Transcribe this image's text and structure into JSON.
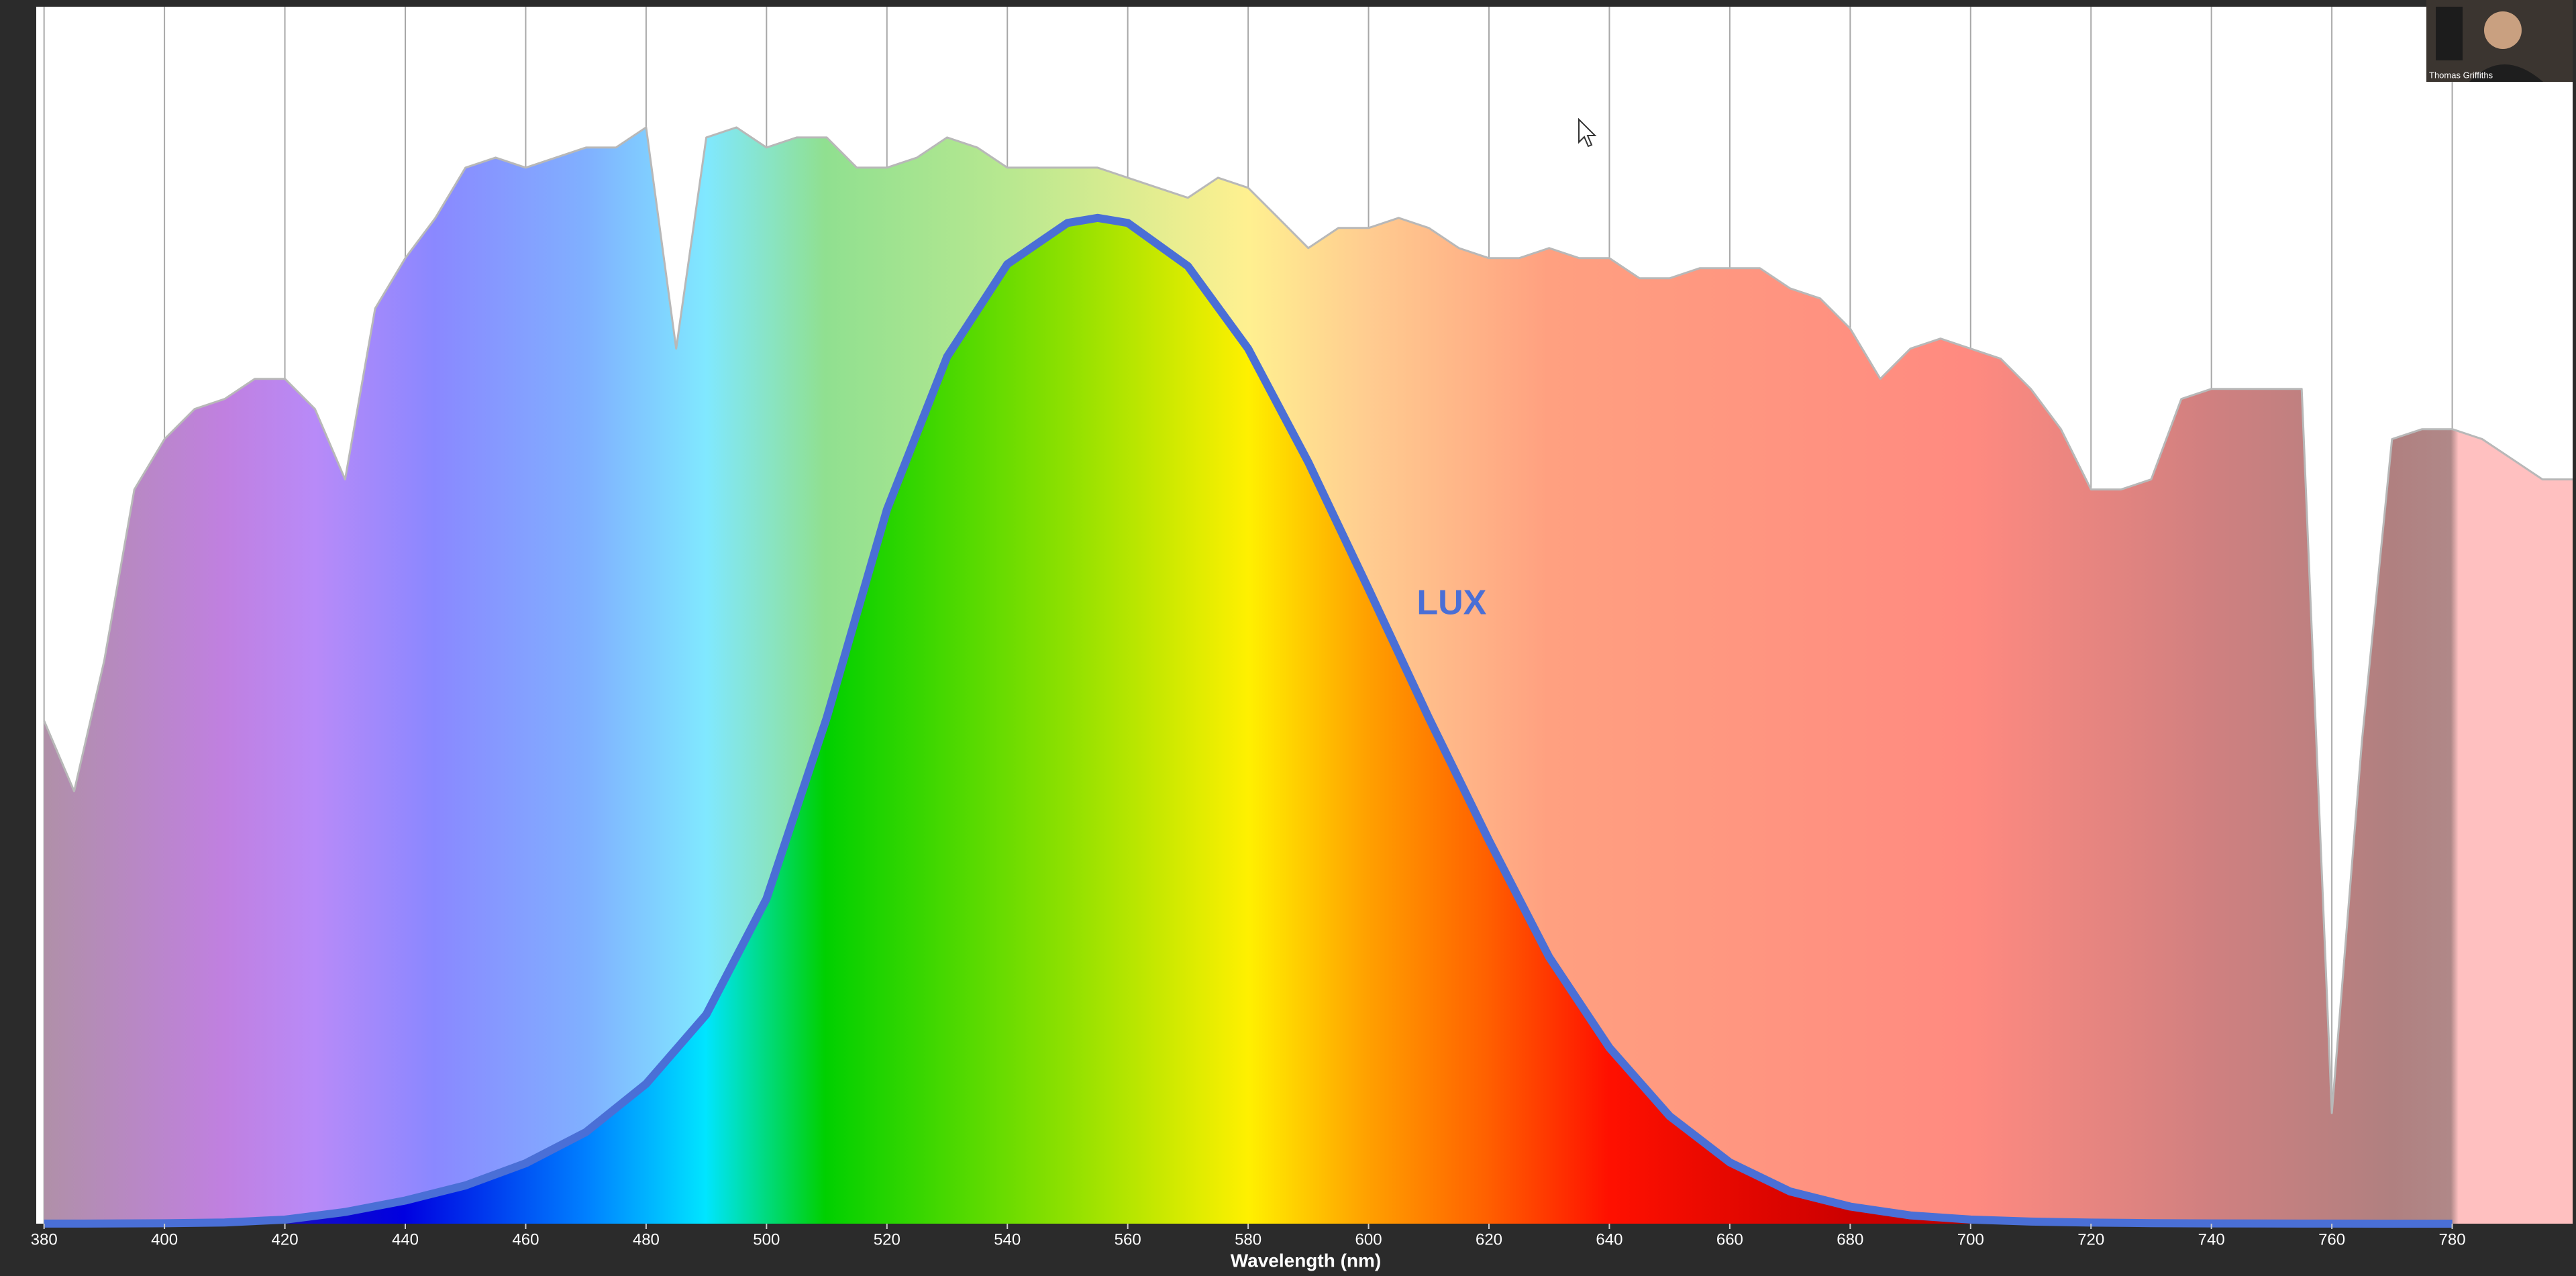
{
  "chart_data": {
    "type": "area",
    "x_label": "Wavelength (nm)",
    "xlim": [
      378.7,
      800
    ],
    "ylim": [
      0,
      1.21
    ],
    "xticks": [
      380,
      400,
      420,
      440,
      460,
      480,
      500,
      520,
      540,
      560,
      580,
      600,
      620,
      640,
      660,
      680,
      700,
      720,
      740,
      760,
      780
    ],
    "grid": true,
    "series": [
      {
        "color": "#b8b8b8",
        "x": [
          380,
          385,
          390,
          395,
          400,
          405,
          410,
          415,
          420,
          425,
          430,
          435,
          440,
          445,
          450,
          455,
          460,
          465,
          470,
          475,
          480,
          485,
          490,
          495,
          500,
          505,
          510,
          515,
          520,
          525,
          530,
          535,
          540,
          545,
          550,
          555,
          560,
          565,
          570,
          575,
          580,
          585,
          590,
          595,
          600,
          605,
          610,
          615,
          620,
          625,
          630,
          635,
          640,
          645,
          650,
          655,
          660,
          665,
          670,
          675,
          680,
          685,
          690,
          695,
          700,
          705,
          710,
          715,
          720,
          725,
          730,
          735,
          740,
          745,
          750,
          755,
          760,
          765,
          770,
          775,
          780,
          785,
          790,
          795,
          800
        ],
        "values": [
          0.5,
          0.43,
          0.56,
          0.73,
          0.78,
          0.81,
          0.82,
          0.84,
          0.84,
          0.81,
          0.74,
          0.91,
          0.96,
          1.0,
          1.05,
          1.06,
          1.05,
          1.06,
          1.07,
          1.07,
          1.09,
          0.87,
          1.08,
          1.09,
          1.07,
          1.08,
          1.08,
          1.05,
          1.05,
          1.06,
          1.08,
          1.07,
          1.05,
          1.05,
          1.05,
          1.05,
          1.04,
          1.03,
          1.02,
          1.04,
          1.03,
          1.0,
          0.97,
          0.99,
          0.99,
          1.0,
          0.99,
          0.97,
          0.96,
          0.96,
          0.97,
          0.96,
          0.96,
          0.94,
          0.94,
          0.95,
          0.95,
          0.95,
          0.93,
          0.92,
          0.89,
          0.84,
          0.87,
          0.88,
          0.87,
          0.86,
          0.83,
          0.79,
          0.73,
          0.73,
          0.74,
          0.82,
          0.83,
          0.83,
          0.83,
          0.83,
          0.11,
          0.48,
          0.78,
          0.79,
          0.79,
          0.78,
          0.76,
          0.74,
          0.74
        ]
      },
      {
        "name": "LUX",
        "color": "#4a6fd6",
        "x": [
          380,
          390,
          400,
          410,
          420,
          430,
          440,
          450,
          460,
          470,
          480,
          490,
          500,
          510,
          520,
          530,
          540,
          550,
          555,
          560,
          570,
          580,
          590,
          600,
          610,
          620,
          630,
          640,
          650,
          660,
          670,
          680,
          690,
          700,
          710,
          720,
          730,
          740,
          750,
          760,
          770,
          780
        ],
        "values": [
          4e-05,
          0.00012,
          0.0004,
          0.0012,
          0.004,
          0.0116,
          0.023,
          0.038,
          0.06,
          0.091,
          0.139,
          0.208,
          0.323,
          0.503,
          0.71,
          0.862,
          0.954,
          0.995,
          1.0,
          0.995,
          0.952,
          0.87,
          0.757,
          0.631,
          0.503,
          0.381,
          0.265,
          0.175,
          0.107,
          0.061,
          0.032,
          0.017,
          0.0082,
          0.0041,
          0.0021,
          0.00105,
          0.00052,
          0.00025,
          0.00012,
          6e-05,
          3e-05,
          1.5e-05
        ]
      }
    ]
  },
  "presenter_name": "Thomas Griffiths"
}
